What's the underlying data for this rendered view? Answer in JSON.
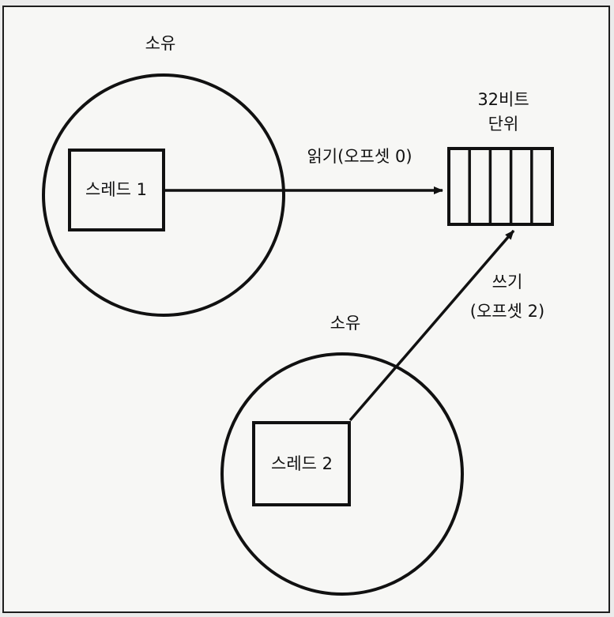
{
  "diagram": {
    "ownership_top": "소유",
    "ownership_bottom": "소유",
    "thread1": "스레드 1",
    "thread2": "스레드 2",
    "unit_line1": "32비트",
    "unit_line2": "단위",
    "read_label": "읽기(오프셋 0)",
    "write_line1": "쓰기",
    "write_line2": "(오프셋 2)",
    "unit_cells": 5
  }
}
